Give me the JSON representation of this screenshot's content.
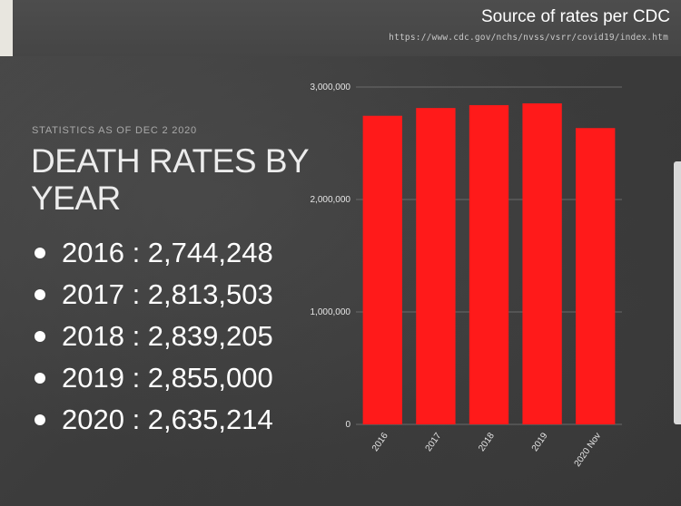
{
  "header": {
    "source_title": "Source of rates per CDC",
    "source_url": "https://www.cdc.gov/nchs/nvss/vsrr/covid19/index.htm"
  },
  "left_panel": {
    "stats_note": "STATISTICS AS OF DEC 2 2020",
    "title": "DEATH RATES BY YEAR",
    "items": [
      {
        "text": "2016 : 2,744,248"
      },
      {
        "text": "2017 : 2,813,503"
      },
      {
        "text": "2018 : 2,839,205"
      },
      {
        "text": "2019 : 2,855,000"
      },
      {
        "text": "2020 : 2,635,214"
      }
    ]
  },
  "colors": {
    "bar": "#ff1a1a",
    "text": "#ffffff"
  },
  "chart_data": {
    "type": "bar",
    "title": "",
    "xlabel": "",
    "ylabel": "",
    "categories": [
      "2016",
      "2017",
      "2018",
      "2019",
      "2020 Nov"
    ],
    "values": [
      2744248,
      2813503,
      2839205,
      2855000,
      2635214
    ],
    "ylim": [
      0,
      3000000
    ],
    "yticks": [
      0,
      1000000,
      2000000,
      3000000
    ],
    "ytick_labels": [
      "0",
      "1,000,000",
      "2,000,000",
      "3,000,000"
    ],
    "grid": true,
    "legend": "none"
  }
}
